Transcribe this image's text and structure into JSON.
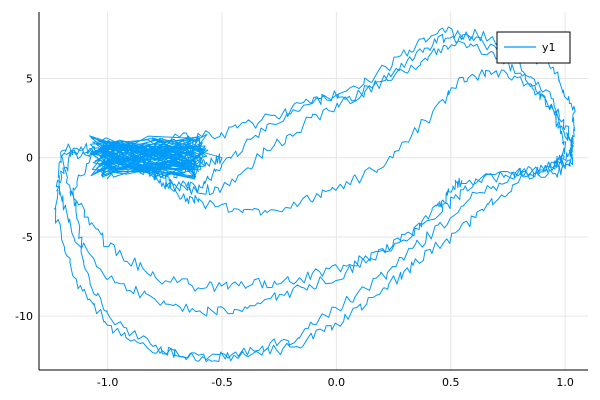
{
  "chart_data": {
    "type": "line",
    "title": "",
    "xlabel": "",
    "ylabel": "",
    "xlim": [
      -1.3,
      1.1
    ],
    "ylim": [
      -13.4,
      9.2
    ],
    "xticks": [
      -1.0,
      -0.5,
      0.0,
      0.5,
      1.0
    ],
    "xtick_labels": [
      "-1.0",
      "-0.5",
      "0.0",
      "0.5",
      "1.0"
    ],
    "yticks": [
      -10,
      -5,
      0,
      5
    ],
    "ytick_labels": [
      "-10",
      "-5",
      "0",
      "5"
    ],
    "grid": true,
    "legend": {
      "position": "top-right",
      "entries": [
        "y1"
      ]
    },
    "series": [
      {
        "name": "y1",
        "color": "#009AF9",
        "noise": 0.35,
        "seed": 7,
        "x": [
          -0.9,
          -0.7,
          -0.5,
          -0.3,
          -0.1,
          0.1,
          0.3,
          0.45,
          0.6,
          0.8,
          0.95,
          1.03,
          1.02,
          0.95,
          0.75,
          0.55,
          0.5,
          0.45,
          0.35,
          0.2,
          0.0,
          -0.2,
          -0.4,
          -0.6,
          -0.8,
          -1.0,
          -1.15,
          -1.2,
          -1.1,
          -0.95,
          -0.8,
          -0.7,
          -0.6,
          -0.5,
          -0.3,
          -0.1,
          0.1,
          0.3,
          0.45,
          0.6,
          0.8,
          0.95,
          1.03,
          1.03,
          0.95,
          0.8,
          0.6,
          0.45,
          0.2,
          0.0,
          -0.2,
          -0.4,
          -0.6,
          -0.8,
          -1.0,
          -1.15,
          -1.22,
          -1.15,
          -1.0,
          -0.85,
          -0.75,
          -0.65,
          -0.5,
          -0.3,
          -0.1,
          0.1,
          0.3,
          0.45,
          0.6,
          0.8,
          0.95,
          1.04,
          1.03,
          0.95,
          0.8,
          0.6,
          0.4,
          0.2,
          0.0,
          -0.2,
          -0.4,
          -0.6,
          -0.8,
          -1.0,
          -1.15,
          -1.23,
          -1.2,
          -1.05,
          -0.9,
          -0.8,
          -0.7,
          -0.6,
          -0.4,
          -0.2,
          0.0,
          0.2,
          0.4,
          0.55,
          0.7,
          0.85,
          0.95,
          1.0,
          0.95,
          0.85,
          0.7,
          0.55,
          0.35,
          0.2,
          0.0,
          -0.2,
          -0.4,
          -0.6,
          -0.8,
          -1.0,
          -1.1,
          -1.15,
          -1.05,
          -0.9,
          -0.8,
          -0.7,
          -0.6,
          -0.5
        ],
        "y": [
          0.3,
          1.2,
          1.5,
          2.5,
          3.5,
          4.0,
          5.8,
          7.5,
          7.0,
          5.5,
          3.0,
          0.8,
          -0.5,
          -1.0,
          -1.0,
          -1.5,
          -2.0,
          -3.0,
          -4.5,
          -6.0,
          -7.0,
          -7.8,
          -8.0,
          -8.2,
          -7.5,
          -5.5,
          -2.5,
          0.0,
          0.5,
          0.0,
          -1.0,
          -1.8,
          -1.8,
          -0.5,
          2.0,
          3.5,
          4.5,
          6.5,
          8.2,
          7.5,
          6.0,
          3.5,
          1.2,
          -0.2,
          -0.5,
          -1.0,
          -1.5,
          -3.5,
          -6.0,
          -7.5,
          -8.5,
          -9.5,
          -9.8,
          -9.0,
          -7.5,
          -5.0,
          -1.5,
          0.2,
          0.5,
          -0.5,
          -1.5,
          -2.0,
          -2.0,
          0.5,
          2.5,
          4.0,
          5.5,
          6.8,
          7.8,
          7.0,
          5.5,
          3.0,
          0.5,
          -0.5,
          -1.0,
          -2.5,
          -5.0,
          -7.5,
          -9.5,
          -11.5,
          -12.2,
          -12.6,
          -12.2,
          -10.5,
          -7.5,
          -3.5,
          0.5,
          0.6,
          -0.2,
          -1.2,
          -2.2,
          -2.8,
          -3.5,
          -3.0,
          -2.0,
          -0.5,
          2.5,
          5.0,
          5.5,
          4.5,
          3.0,
          0.5,
          -0.5,
          -1.0,
          -2.5,
          -4.5,
          -6.5,
          -8.5,
          -10.5,
          -12.0,
          -12.5,
          -12.7,
          -12.0,
          -10.0,
          -7.0,
          -2.0,
          0.5,
          0.6,
          -0.5,
          -1.0,
          -0.5,
          0.0
        ]
      }
    ]
  }
}
